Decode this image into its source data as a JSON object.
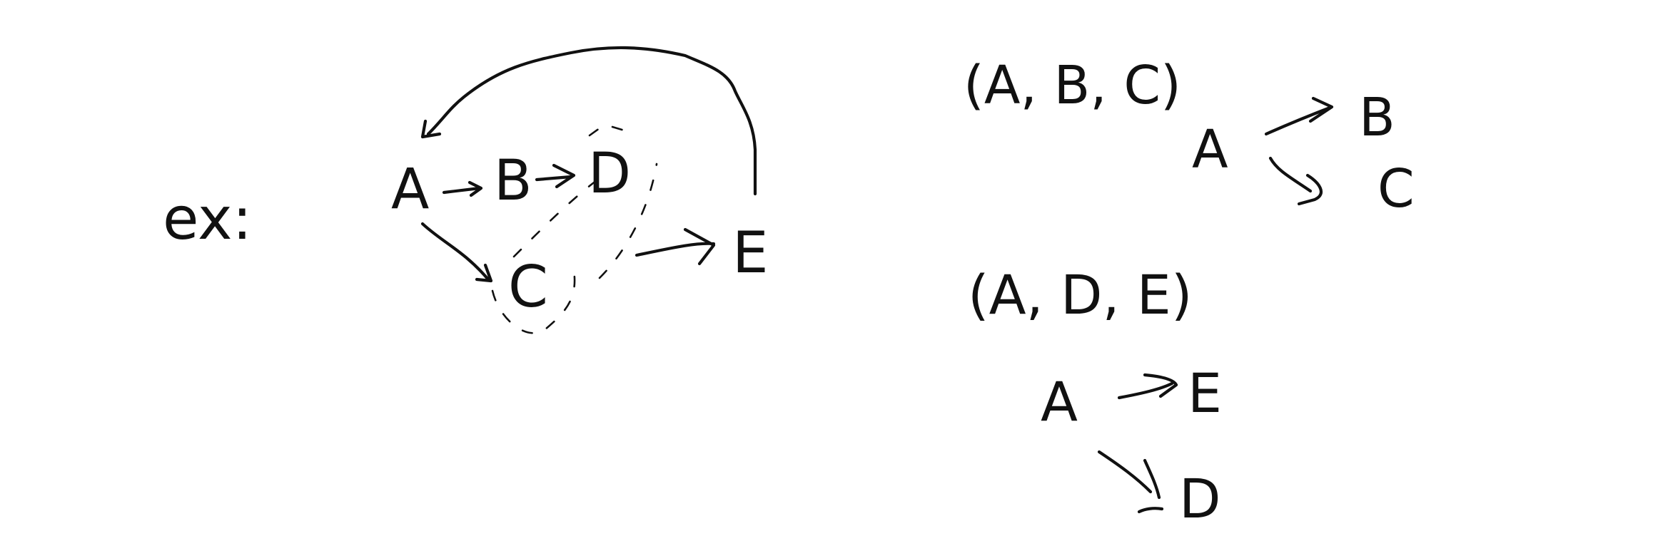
{
  "prefix": "ex:",
  "graph": {
    "nodes": {
      "a": "A",
      "b": "B",
      "c": "C",
      "d": "D",
      "e": "E"
    }
  },
  "traces": [
    {
      "tuple": "(A, B, C)",
      "tree": {
        "root": "A",
        "child1": "B",
        "child2": "C"
      }
    },
    {
      "tuple": "(A, D, E)",
      "tree": {
        "root": "A",
        "child1": "E",
        "child2": "D"
      }
    }
  ]
}
